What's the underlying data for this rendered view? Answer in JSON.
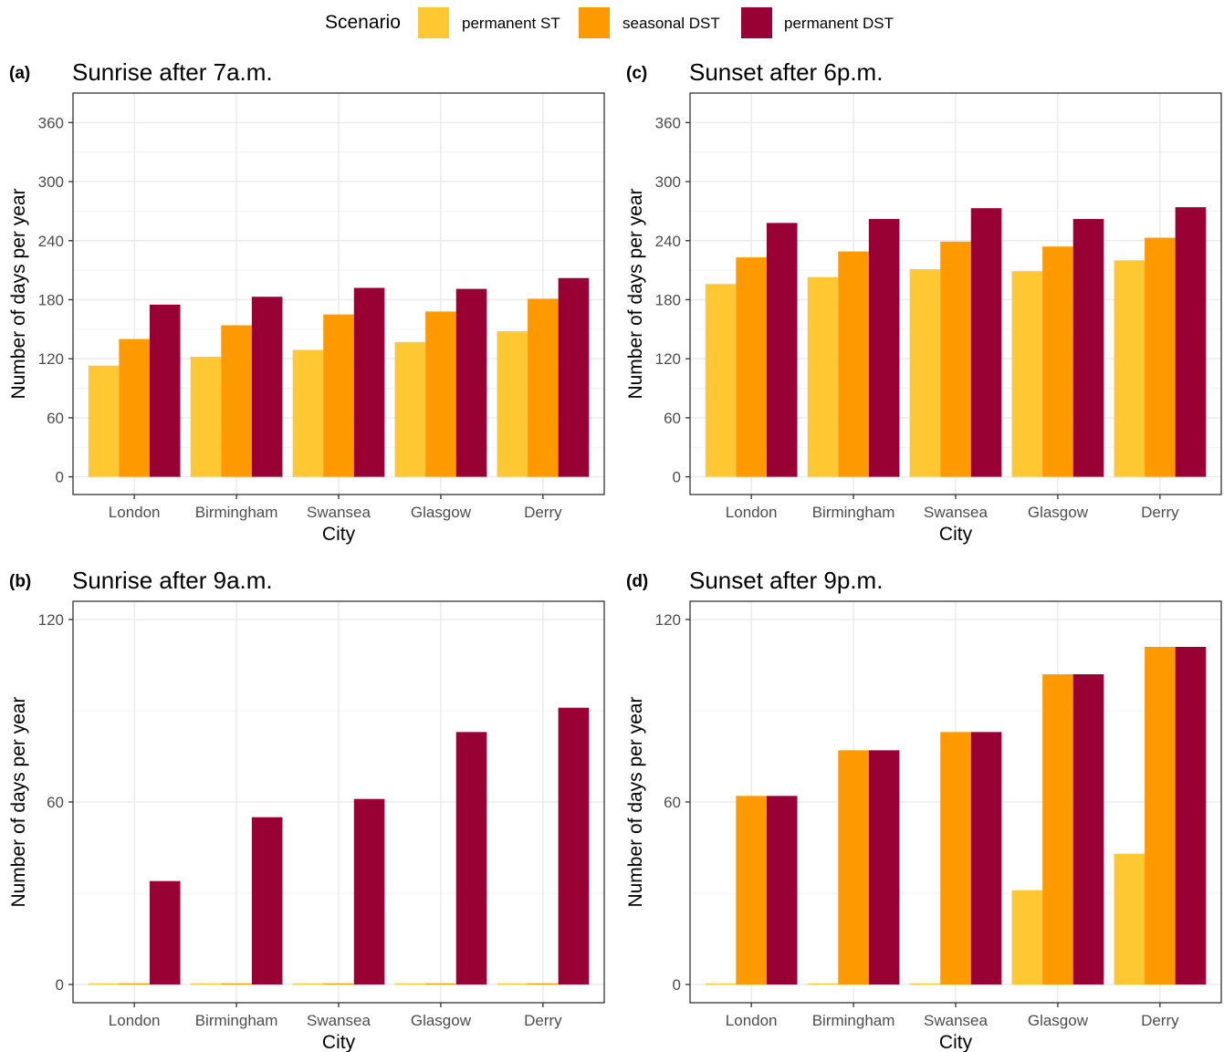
{
  "legend": {
    "title": "Scenario",
    "items": [
      {
        "label": "permanent ST",
        "color": "#FFC832"
      },
      {
        "label": "seasonal DST",
        "color": "#FF9900"
      },
      {
        "label": "permanent DST",
        "color": "#990033"
      }
    ]
  },
  "chart_data": [
    {
      "tag": "(a)",
      "type": "bar",
      "title": "Sunrise after 7a.m.",
      "xlabel": "City",
      "ylabel": "Number of days per year",
      "categories": [
        "London",
        "Birmingham",
        "Swansea",
        "Glasgow",
        "Derry"
      ],
      "yticks": [
        0,
        60,
        120,
        180,
        240,
        300,
        360
      ],
      "ylim": [
        -18,
        390
      ],
      "grid": true,
      "series": [
        {
          "name": "permanent ST",
          "values": [
            113,
            122,
            129,
            137,
            148
          ]
        },
        {
          "name": "seasonal DST",
          "values": [
            140,
            154,
            165,
            168,
            181
          ]
        },
        {
          "name": "permanent DST",
          "values": [
            175,
            183,
            192,
            191,
            202
          ]
        }
      ]
    },
    {
      "tag": "(c)",
      "type": "bar",
      "title": "Sunset after 6p.m.",
      "xlabel": "City",
      "ylabel": "Number of days per year",
      "categories": [
        "London",
        "Birmingham",
        "Swansea",
        "Glasgow",
        "Derry"
      ],
      "yticks": [
        0,
        60,
        120,
        180,
        240,
        300,
        360
      ],
      "ylim": [
        -18,
        390
      ],
      "grid": true,
      "series": [
        {
          "name": "permanent ST",
          "values": [
            196,
            203,
            211,
            209,
            220
          ]
        },
        {
          "name": "seasonal DST",
          "values": [
            223,
            229,
            239,
            234,
            243
          ]
        },
        {
          "name": "permanent DST",
          "values": [
            258,
            262,
            273,
            262,
            274
          ]
        }
      ]
    },
    {
      "tag": "(b)",
      "type": "bar",
      "title": "Sunrise after 9a.m.",
      "xlabel": "City",
      "ylabel": "Number of days per year",
      "categories": [
        "London",
        "Birmingham",
        "Swansea",
        "Glasgow",
        "Derry"
      ],
      "yticks": [
        0,
        60,
        120
      ],
      "ylim": [
        -6,
        126
      ],
      "grid": true,
      "series": [
        {
          "name": "permanent ST",
          "values": [
            0,
            0,
            0,
            0,
            0
          ]
        },
        {
          "name": "seasonal DST",
          "values": [
            0,
            0,
            0,
            0,
            0
          ]
        },
        {
          "name": "permanent DST",
          "values": [
            34,
            55,
            61,
            83,
            91
          ]
        }
      ]
    },
    {
      "tag": "(d)",
      "type": "bar",
      "title": "Sunset after 9p.m.",
      "xlabel": "City",
      "ylabel": "Number of days per year",
      "categories": [
        "London",
        "Birmingham",
        "Swansea",
        "Glasgow",
        "Derry"
      ],
      "yticks": [
        0,
        60,
        120
      ],
      "ylim": [
        -6,
        126
      ],
      "grid": true,
      "series": [
        {
          "name": "permanent ST",
          "values": [
            0,
            0,
            0,
            31,
            43
          ]
        },
        {
          "name": "seasonal DST",
          "values": [
            62,
            77,
            83,
            102,
            111
          ]
        },
        {
          "name": "permanent DST",
          "values": [
            62,
            77,
            83,
            102,
            111
          ]
        }
      ]
    }
  ]
}
